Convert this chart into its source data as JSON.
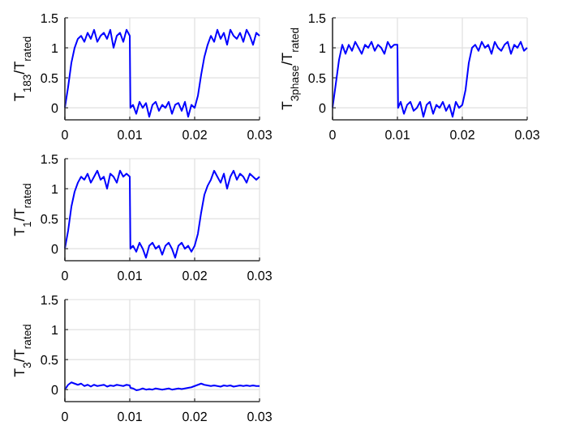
{
  "chart_data": [
    {
      "type": "line",
      "ylabel": "T$_{183}$/T$_{rated}$",
      "xlim": [
        0,
        0.03
      ],
      "xticks": [
        0,
        0.01,
        0.02,
        0.03
      ],
      "ylim": [
        -0.2,
        1.5
      ],
      "yticks": [
        0,
        0.5,
        1,
        1.5
      ],
      "grid": true,
      "line_style": "solid",
      "x": [
        0,
        0.0005,
        0.001,
        0.0015,
        0.002,
        0.0025,
        0.003,
        0.0035,
        0.004,
        0.0045,
        0.005,
        0.0055,
        0.006,
        0.0065,
        0.007,
        0.0075,
        0.008,
        0.0085,
        0.009,
        0.0095,
        0.01,
        0.0101,
        0.0105,
        0.011,
        0.0115,
        0.012,
        0.0125,
        0.013,
        0.0135,
        0.014,
        0.0145,
        0.015,
        0.0155,
        0.016,
        0.0165,
        0.017,
        0.0175,
        0.018,
        0.0185,
        0.019,
        0.0195,
        0.02,
        0.0205,
        0.021,
        0.0215,
        0.022,
        0.0225,
        0.023,
        0.0235,
        0.024,
        0.0245,
        0.025,
        0.0255,
        0.026,
        0.0265,
        0.027,
        0.0275,
        0.028,
        0.0285,
        0.029,
        0.0295,
        0.03
      ],
      "series": [
        {
          "color": "#0000ff",
          "values": [
            0,
            0.35,
            0.75,
            1.0,
            1.15,
            1.2,
            1.1,
            1.25,
            1.15,
            1.3,
            1.1,
            1.2,
            1.25,
            1.15,
            1.3,
            1.0,
            1.2,
            1.25,
            1.1,
            1.3,
            1.2,
            0,
            0.05,
            -0.1,
            0.1,
            0.0,
            0.08,
            -0.15,
            0.05,
            0.1,
            -0.05,
            0.05,
            0.0,
            0.1,
            -0.1,
            0.05,
            0.08,
            -0.05,
            0.1,
            -0.15,
            0.05,
            0.0,
            0.2,
            0.55,
            0.85,
            1.05,
            1.2,
            1.1,
            1.3,
            1.15,
            1.25,
            1.05,
            1.3,
            1.2,
            1.15,
            1.25,
            1.1,
            1.3,
            1.2,
            1.05,
            1.25,
            1.2
          ]
        }
      ]
    },
    {
      "type": "line",
      "ylabel": "T$_{3phase}$/T$_{rated}$",
      "xlim": [
        0,
        0.03
      ],
      "xticks": [
        0,
        0.01,
        0.02,
        0.03
      ],
      "ylim": [
        -0.2,
        1.5
      ],
      "yticks": [
        0,
        0.5,
        1,
        1.5
      ],
      "grid": true,
      "line_style": "solid",
      "x": [
        0,
        0.0005,
        0.001,
        0.0015,
        0.002,
        0.0025,
        0.003,
        0.0035,
        0.004,
        0.0045,
        0.005,
        0.0055,
        0.006,
        0.0065,
        0.007,
        0.0075,
        0.008,
        0.0085,
        0.009,
        0.0095,
        0.01,
        0.0101,
        0.0105,
        0.011,
        0.0115,
        0.012,
        0.0125,
        0.013,
        0.0135,
        0.014,
        0.0145,
        0.015,
        0.0155,
        0.016,
        0.0165,
        0.017,
        0.0175,
        0.018,
        0.0185,
        0.019,
        0.0195,
        0.02,
        0.0205,
        0.021,
        0.0215,
        0.022,
        0.0225,
        0.023,
        0.0235,
        0.024,
        0.0245,
        0.025,
        0.0255,
        0.026,
        0.0265,
        0.027,
        0.0275,
        0.028,
        0.0285,
        0.029,
        0.0295,
        0.03
      ],
      "series": [
        {
          "color": "#0000ff",
          "values": [
            0,
            0.4,
            0.8,
            1.05,
            0.9,
            1.05,
            0.95,
            1.1,
            1.0,
            0.9,
            1.05,
            1.0,
            1.1,
            0.95,
            1.05,
            1.0,
            0.9,
            1.1,
            1.0,
            1.05,
            1.05,
            0,
            0.1,
            -0.1,
            0.05,
            0.1,
            -0.05,
            0.0,
            0.1,
            -0.15,
            0.05,
            0.1,
            -0.1,
            0.05,
            0.0,
            0.1,
            -0.05,
            0.05,
            -0.15,
            0.1,
            0.0,
            0.05,
            0.3,
            0.75,
            1.0,
            1.05,
            0.95,
            1.1,
            1.0,
            1.05,
            0.9,
            1.1,
            1.0,
            0.95,
            1.05,
            1.1,
            0.9,
            1.05,
            1.0,
            1.1,
            0.95,
            1.0
          ]
        }
      ]
    },
    {
      "type": "line",
      "ylabel": "T$_{1}$/T$_{rated}$",
      "xlim": [
        0,
        0.03
      ],
      "xticks": [
        0,
        0.01,
        0.02,
        0.03
      ],
      "ylim": [
        -0.2,
        1.5
      ],
      "yticks": [
        0,
        0.5,
        1,
        1.5
      ],
      "grid": true,
      "line_style": "solid",
      "x": [
        0,
        0.0005,
        0.001,
        0.0015,
        0.002,
        0.0025,
        0.003,
        0.0035,
        0.004,
        0.0045,
        0.005,
        0.0055,
        0.006,
        0.0065,
        0.007,
        0.0075,
        0.008,
        0.0085,
        0.009,
        0.0095,
        0.01,
        0.0101,
        0.0105,
        0.011,
        0.0115,
        0.012,
        0.0125,
        0.013,
        0.0135,
        0.014,
        0.0145,
        0.015,
        0.0155,
        0.016,
        0.0165,
        0.017,
        0.0175,
        0.018,
        0.0185,
        0.019,
        0.0195,
        0.02,
        0.0205,
        0.021,
        0.0215,
        0.022,
        0.0225,
        0.023,
        0.0235,
        0.024,
        0.0245,
        0.025,
        0.0255,
        0.026,
        0.0265,
        0.027,
        0.0275,
        0.028,
        0.0285,
        0.029,
        0.0295,
        0.03
      ],
      "series": [
        {
          "color": "#0000ff",
          "values": [
            0,
            0.3,
            0.7,
            0.95,
            1.1,
            1.2,
            1.15,
            1.25,
            1.1,
            1.2,
            1.3,
            1.15,
            1.2,
            1.0,
            1.25,
            1.2,
            1.1,
            1.3,
            1.2,
            1.25,
            1.2,
            0,
            0.05,
            -0.05,
            0.1,
            0.0,
            -0.15,
            0.05,
            0.1,
            0.0,
            0.05,
            -0.1,
            0.05,
            0.1,
            0.0,
            -0.15,
            0.05,
            0.1,
            0.0,
            0.05,
            -0.05,
            0.05,
            0.25,
            0.6,
            0.9,
            1.05,
            1.15,
            1.3,
            1.2,
            1.1,
            1.25,
            1.0,
            1.2,
            1.3,
            1.15,
            1.25,
            1.2,
            1.1,
            1.25,
            1.2,
            1.15,
            1.2
          ]
        }
      ]
    },
    {
      "type": "line",
      "ylabel": "T$_{3}$/T$_{rated}$",
      "xlim": [
        0,
        0.03
      ],
      "xticks": [
        0,
        0.01,
        0.02,
        0.03
      ],
      "ylim": [
        -0.2,
        1.5
      ],
      "yticks": [
        0,
        0.5,
        1,
        1.5
      ],
      "grid": true,
      "line_style": "solid",
      "x": [
        0,
        0.0005,
        0.001,
        0.0015,
        0.002,
        0.0025,
        0.003,
        0.0035,
        0.004,
        0.0045,
        0.005,
        0.0055,
        0.006,
        0.0065,
        0.007,
        0.0075,
        0.008,
        0.0085,
        0.009,
        0.0095,
        0.01,
        0.0101,
        0.0105,
        0.011,
        0.0115,
        0.012,
        0.0125,
        0.013,
        0.0135,
        0.014,
        0.0145,
        0.015,
        0.0155,
        0.016,
        0.0165,
        0.017,
        0.0175,
        0.018,
        0.0185,
        0.019,
        0.0195,
        0.02,
        0.0205,
        0.021,
        0.0215,
        0.022,
        0.0225,
        0.023,
        0.0235,
        0.024,
        0.0245,
        0.025,
        0.0255,
        0.026,
        0.0265,
        0.027,
        0.0275,
        0.028,
        0.0285,
        0.029,
        0.0295,
        0.03
      ],
      "series": [
        {
          "color": "#0000ff",
          "values": [
            0,
            0.08,
            0.12,
            0.1,
            0.08,
            0.1,
            0.06,
            0.08,
            0.05,
            0.08,
            0.06,
            0.07,
            0.08,
            0.05,
            0.07,
            0.06,
            0.08,
            0.07,
            0.06,
            0.08,
            0.07,
            0.03,
            0.02,
            -0.01,
            0.0,
            0.02,
            0.0,
            0.01,
            0.0,
            0.02,
            0.01,
            0.0,
            0.01,
            0.02,
            0.0,
            0.01,
            0.02,
            0.01,
            0.02,
            0.03,
            0.04,
            0.06,
            0.08,
            0.1,
            0.08,
            0.07,
            0.06,
            0.07,
            0.06,
            0.05,
            0.07,
            0.06,
            0.07,
            0.05,
            0.06,
            0.07,
            0.06,
            0.07,
            0.06,
            0.07,
            0.06,
            0.06
          ]
        }
      ]
    }
  ]
}
